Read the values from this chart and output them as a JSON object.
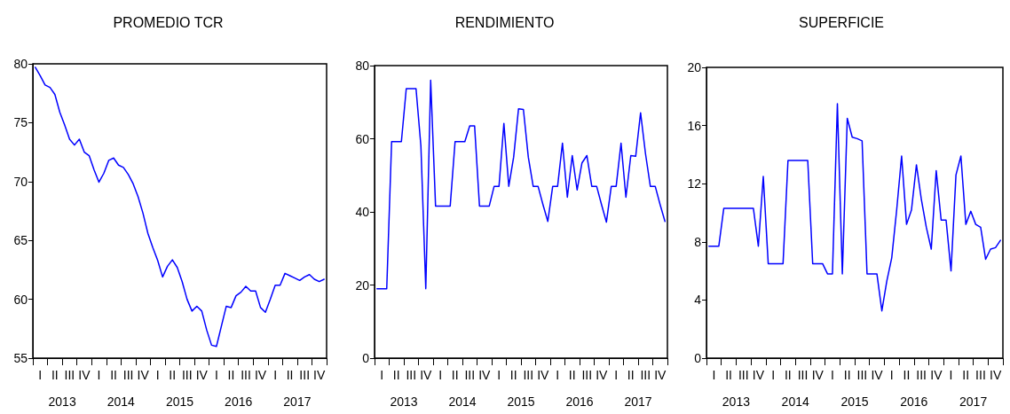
{
  "chart_data": [
    {
      "type": "line",
      "title": "PROMEDIO TCR",
      "color": "#0000ff",
      "ylim": [
        55,
        80
      ],
      "yticks": [
        55,
        60,
        65,
        70,
        75,
        80
      ],
      "grid": false,
      "categories": [
        null,
        "I",
        null,
        null,
        "II",
        null,
        null,
        "III",
        null,
        null,
        "IV",
        null,
        null,
        "I",
        null,
        null,
        "II",
        null,
        null,
        "III",
        null,
        null,
        "IV",
        null,
        null,
        "I",
        null,
        null,
        "II",
        null,
        null,
        "III",
        null,
        null,
        "IV",
        null,
        null,
        "I",
        null,
        null,
        "II",
        null,
        null,
        "III",
        null,
        null,
        "IV",
        null,
        null,
        "I",
        null,
        null,
        "II",
        null,
        null,
        "III",
        null,
        null,
        "IV",
        null
      ],
      "values": [
        79.7,
        79.0,
        78.2,
        78.0,
        77.4,
        75.9,
        74.8,
        73.6,
        73.1,
        73.6,
        72.5,
        72.2,
        71.0,
        69.95,
        70.7,
        71.8,
        72.0,
        71.4,
        71.2,
        70.6,
        69.8,
        68.7,
        67.3,
        65.6,
        64.4,
        63.3,
        61.9,
        62.8,
        63.35,
        62.7,
        61.5,
        60.0,
        59.0,
        59.4,
        59.0,
        57.4,
        56.1,
        56.0,
        57.7,
        59.4,
        59.3,
        60.3,
        60.6,
        61.1,
        60.7,
        60.7,
        59.3,
        58.9,
        60.0,
        61.2,
        61.2,
        62.2,
        62.0,
        61.8,
        61.6,
        61.9,
        62.1,
        61.7,
        61.5,
        61.7
      ],
      "annotations": [
        "2013",
        "2014",
        "2015",
        "2016",
        "2017"
      ]
    },
    {
      "type": "line",
      "title": "RENDIMIENTO",
      "color": "#0000ff",
      "ylim": [
        0,
        80
      ],
      "yticks": [
        0,
        20,
        40,
        60,
        80
      ],
      "grid": false,
      "categories": [
        null,
        "I",
        null,
        null,
        "II",
        null,
        null,
        "III",
        null,
        null,
        "IV",
        null,
        null,
        "I",
        null,
        null,
        "II",
        null,
        null,
        "III",
        null,
        null,
        "IV",
        null,
        null,
        "I",
        null,
        null,
        "II",
        null,
        null,
        "III",
        null,
        null,
        "IV",
        null,
        null,
        "I",
        null,
        null,
        "II",
        null,
        null,
        "III",
        null,
        null,
        "IV",
        null,
        null,
        "I",
        null,
        null,
        "II",
        null,
        null,
        "III",
        null,
        null,
        "IV",
        null
      ],
      "values": [
        19,
        19,
        19,
        59.2,
        59.2,
        59.2,
        73.7,
        73.7,
        73.7,
        58,
        19,
        76,
        41.6,
        41.6,
        41.6,
        41.6,
        59.2,
        59.2,
        59.2,
        63.5,
        63.5,
        41.6,
        41.6,
        41.6,
        47,
        47,
        64.2,
        47,
        55,
        68.2,
        68,
        55,
        47,
        47,
        42,
        37.4,
        47,
        47,
        58.8,
        44,
        55.4,
        46,
        53.4,
        55.4,
        47,
        47,
        42,
        37.2,
        47,
        47,
        58.8,
        44,
        55.4,
        55.2,
        67.1,
        56,
        47,
        47,
        42,
        37.4
      ],
      "annotations": [
        "2013",
        "2014",
        "2015",
        "2016",
        "2017"
      ]
    },
    {
      "type": "line",
      "title": "SUPERFICIE",
      "color": "#0000ff",
      "ylim": [
        0,
        20
      ],
      "yticks": [
        0,
        4,
        8,
        12,
        16,
        20
      ],
      "grid": false,
      "categories": [
        null,
        "I",
        null,
        null,
        "II",
        null,
        null,
        "III",
        null,
        null,
        "IV",
        null,
        null,
        "I",
        null,
        null,
        "II",
        null,
        null,
        "III",
        null,
        null,
        "IV",
        null,
        null,
        "I",
        null,
        null,
        "II",
        null,
        null,
        "III",
        null,
        null,
        "IV",
        null,
        null,
        "I",
        null,
        null,
        "II",
        null,
        null,
        "III",
        null,
        null,
        "IV",
        null,
        null,
        "I",
        null,
        null,
        "II",
        null,
        null,
        "III",
        null,
        null,
        "IV",
        null
      ],
      "values": [
        7.7,
        7.7,
        7.7,
        10.3,
        10.3,
        10.3,
        10.3,
        10.3,
        10.3,
        10.3,
        7.7,
        12.5,
        6.5,
        6.5,
        6.5,
        6.5,
        13.6,
        13.6,
        13.6,
        13.6,
        13.6,
        6.5,
        6.5,
        6.5,
        5.8,
        5.8,
        17.5,
        5.8,
        16.5,
        15.2,
        15.1,
        14.95,
        5.8,
        5.8,
        5.8,
        3.25,
        5.3,
        6.9,
        10.2,
        13.9,
        9.2,
        10.2,
        13.3,
        10.9,
        9.0,
        7.5,
        12.9,
        9.5,
        9.5,
        6.0,
        12.6,
        13.9,
        9.2,
        10.1,
        9.2,
        9.0,
        6.8,
        7.5,
        7.6,
        8.1
      ],
      "annotations": [
        "2013",
        "2014",
        "2015",
        "2016",
        "2017"
      ]
    }
  ]
}
